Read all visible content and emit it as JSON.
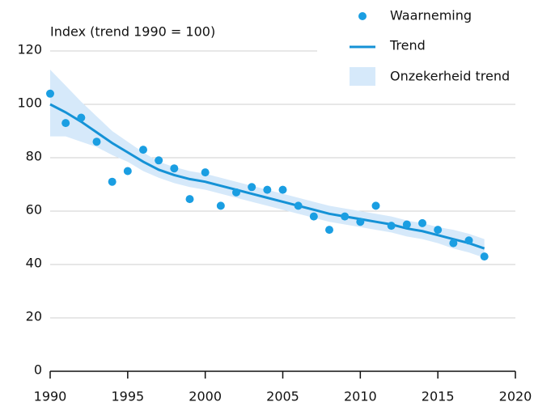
{
  "chart_data": {
    "type": "line",
    "title": "Index (trend 1990 = 100)",
    "x": [
      1990,
      1991,
      1992,
      1993,
      1994,
      1995,
      1996,
      1997,
      1998,
      1999,
      2000,
      2001,
      2002,
      2003,
      2004,
      2005,
      2006,
      2007,
      2008,
      2009,
      2010,
      2011,
      2012,
      2013,
      2014,
      2015,
      2016,
      2017,
      2018
    ],
    "series": [
      {
        "name": "Waarneming",
        "color": "#1a9ee2",
        "values": [
          104,
          93,
          95,
          86,
          71,
          75,
          83,
          79,
          76,
          64.5,
          74.5,
          62,
          67,
          69,
          68,
          68,
          62,
          58,
          53,
          58,
          56,
          62,
          54.5,
          55,
          55.5,
          53,
          48,
          49,
          43
        ]
      },
      {
        "name": "Trend",
        "color": "#1592d6",
        "values": [
          100,
          97,
          93.5,
          89.5,
          85.5,
          82,
          78.5,
          75.5,
          73.5,
          72,
          71,
          69.5,
          68,
          66.5,
          65,
          63.5,
          62,
          60.5,
          59,
          58,
          57,
          56,
          55,
          53.5,
          52.5,
          51,
          49.5,
          48,
          46
        ]
      },
      {
        "name": "Onzekerheid trend",
        "color": "#d6e9fa",
        "lower": [
          88,
          88,
          86,
          84,
          81,
          78.5,
          75,
          72.5,
          70.5,
          69,
          68,
          66.5,
          65,
          63.5,
          62,
          60.5,
          59,
          57.5,
          56,
          55,
          54,
          53,
          52,
          50.5,
          49.5,
          48,
          46,
          44.5,
          42.5
        ],
        "upper": [
          113,
          107,
          101,
          95.5,
          90,
          86,
          82,
          78.5,
          76.5,
          75,
          74,
          72.5,
          71,
          69.5,
          68,
          66.5,
          65,
          63.5,
          62,
          61,
          60,
          59,
          58,
          56.5,
          55.5,
          54,
          53,
          51.5,
          49.5
        ]
      }
    ],
    "xlim": [
      1990,
      2020
    ],
    "xticks": [
      1990,
      1995,
      2000,
      2005,
      2010,
      2015,
      2020
    ],
    "ylim": [
      0,
      120
    ],
    "yticks": [
      0,
      20,
      40,
      60,
      80,
      100,
      120
    ],
    "grid": true,
    "legend": "top-right"
  }
}
